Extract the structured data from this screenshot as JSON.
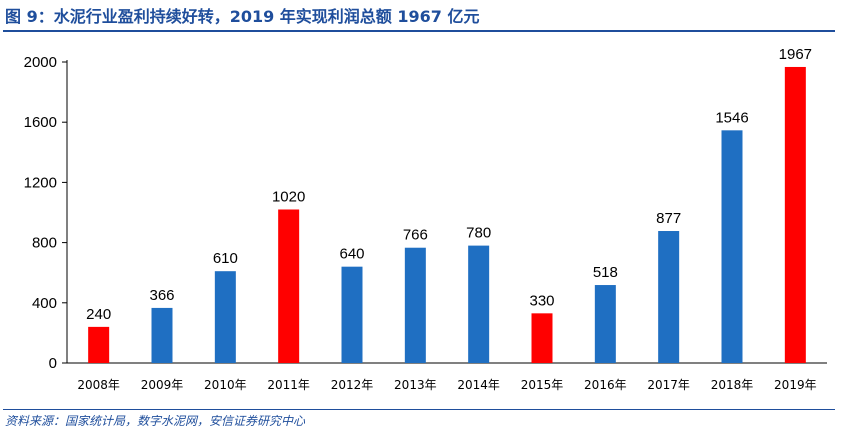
{
  "header": {
    "title": "图 9：水泥行业盈利持续好转，2019 年实现利润总额 1967 亿元"
  },
  "footer": {
    "source": "资料来源：国家统计局，数字水泥网，安信证券研究中心"
  },
  "colors": {
    "accent": "#1f4e9c",
    "bar_blue": "#1f6fc2",
    "bar_red": "#ff0000"
  },
  "chart_data": {
    "type": "bar",
    "title": "",
    "xlabel": "",
    "ylabel": "",
    "categories": [
      "2008年",
      "2009年",
      "2010年",
      "2011年",
      "2012年",
      "2013年",
      "2014年",
      "2015年",
      "2016年",
      "2017年",
      "2018年",
      "2019年"
    ],
    "values": [
      240,
      366,
      610,
      1020,
      640,
      766,
      780,
      330,
      518,
      877,
      1546,
      1967
    ],
    "value_labels": [
      "240",
      "366",
      "610",
      "1020",
      "640",
      "766",
      "780",
      "330",
      "518",
      "877",
      "1546",
      "1967"
    ],
    "bar_colors": [
      "red",
      "blue",
      "blue",
      "red",
      "blue",
      "blue",
      "blue",
      "red",
      "blue",
      "blue",
      "blue",
      "red"
    ],
    "ylim": [
      0,
      2000
    ],
    "yticks": [
      0,
      400,
      800,
      1200,
      1600,
      2000
    ],
    "ytick_labels": [
      "0",
      "400",
      "800",
      "1200",
      "1600",
      "2000"
    ],
    "grid": false,
    "legend": "none"
  }
}
